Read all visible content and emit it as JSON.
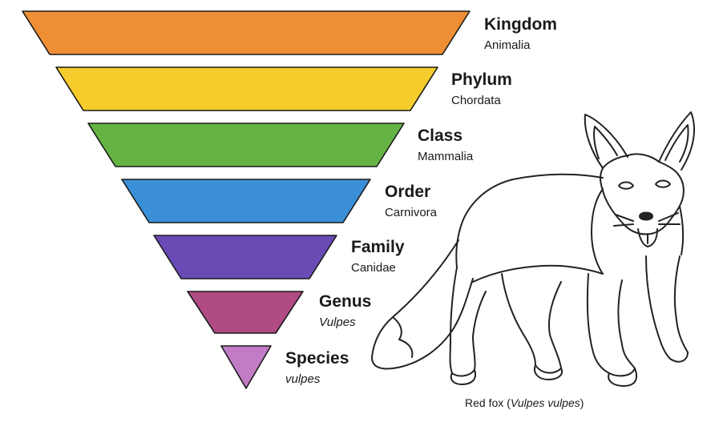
{
  "levels": [
    {
      "rank": "Kingdom",
      "taxon": "Animalia",
      "taxon_italic": false,
      "color": "#EE8E35"
    },
    {
      "rank": "Phylum",
      "taxon": "Chordata",
      "taxon_italic": false,
      "color": "#F6CB2C"
    },
    {
      "rank": "Class",
      "taxon": "Mammalia",
      "taxon_italic": false,
      "color": "#66B345"
    },
    {
      "rank": "Order",
      "taxon": "Carnivora",
      "taxon_italic": false,
      "color": "#3B8FD7"
    },
    {
      "rank": "Family",
      "taxon": "Canidae",
      "taxon_italic": false,
      "color": "#6A4AB4"
    },
    {
      "rank": "Genus",
      "taxon": "Vulpes",
      "taxon_italic": true,
      "color": "#B04C83"
    },
    {
      "rank": "Species",
      "taxon": "vulpes",
      "taxon_italic": true,
      "color": "#C27CC6"
    }
  ],
  "caption": {
    "prefix": "Red fox (",
    "scientific_name": "Vulpes vulpes",
    "suffix": ")"
  },
  "illustration": {
    "subject": "red-fox-line-drawing"
  }
}
